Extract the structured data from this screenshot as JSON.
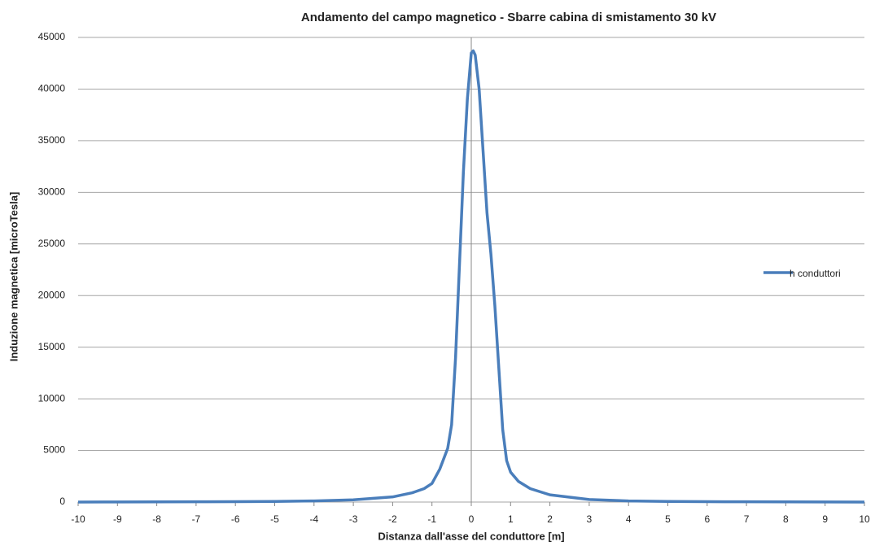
{
  "chart_data": {
    "type": "line",
    "title": "Andamento del campo magnetico - Sbarre cabina di  smistamento 30 kV",
    "x_label": "Distanza dall'asse del conduttore [m]",
    "y_label": "Induzione magnetica [microTesla]",
    "x": [
      -10,
      -9,
      -8,
      -7,
      -6,
      -5,
      -4,
      -3,
      -2,
      -1.5,
      -1.2,
      -1,
      -0.8,
      -0.6,
      -0.5,
      -0.4,
      -0.3,
      -0.2,
      -0.1,
      0,
      0.05,
      0.1,
      0.2,
      0.3,
      0.4,
      0.5,
      0.6,
      0.7,
      0.8,
      0.9,
      1,
      1.2,
      1.5,
      2,
      3,
      4,
      5,
      6,
      7,
      8,
      9,
      10
    ],
    "series": [
      {
        "name": "h conduttori",
        "color": "#4a7ebb",
        "values": [
          5,
          10,
          15,
          25,
          40,
          60,
          110,
          220,
          500,
          900,
          1300,
          1800,
          3200,
          5200,
          7500,
          14000,
          23000,
          32000,
          39000,
          43500,
          43700,
          43300,
          40000,
          34000,
          28000,
          24000,
          19000,
          13000,
          7000,
          4000,
          2900,
          2000,
          1300,
          700,
          250,
          110,
          60,
          40,
          25,
          15,
          10,
          5
        ]
      }
    ],
    "xlim": [
      -10,
      10
    ],
    "xticks": [
      -10,
      -9,
      -8,
      -7,
      -6,
      -5,
      -4,
      -3,
      -2,
      -1,
      0,
      1,
      2,
      3,
      4,
      5,
      6,
      7,
      8,
      9,
      10
    ],
    "ylim": [
      0,
      45000
    ],
    "yticks": [
      0,
      5000,
      10000,
      15000,
      20000,
      25000,
      30000,
      35000,
      40000,
      45000
    ],
    "grid": true,
    "legend": "right"
  }
}
